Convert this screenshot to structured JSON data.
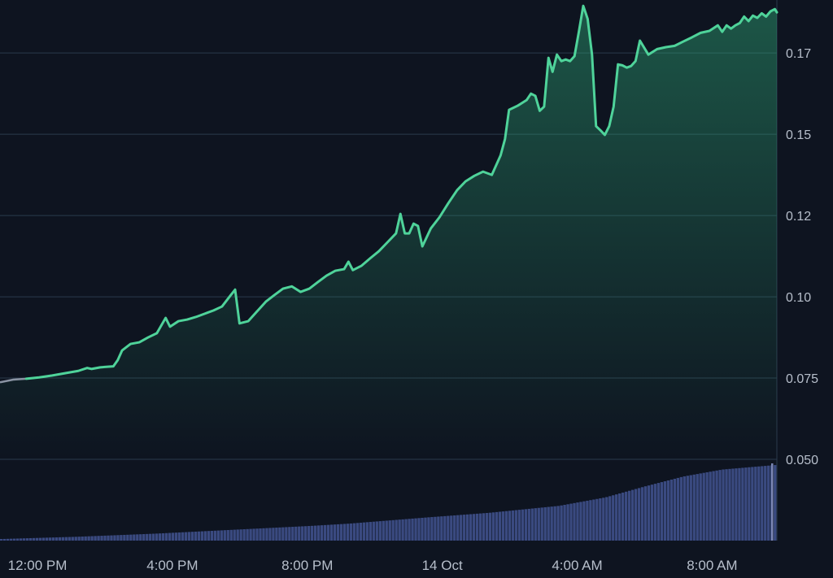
{
  "chart_data": {
    "type": "area",
    "title": "",
    "xlabel": "",
    "ylabel": "",
    "x_unit": "hours",
    "xlim": [
      10.89,
      33.92
    ],
    "ylim": [
      0.05,
      0.1913
    ],
    "y_ticks": [
      {
        "value": 0.05,
        "label": "0.050"
      },
      {
        "value": 0.075,
        "label": "0.075"
      },
      {
        "value": 0.1,
        "label": "0.10"
      },
      {
        "value": 0.125,
        "label": "0.12"
      },
      {
        "value": 0.15,
        "label": "0.15"
      },
      {
        "value": 0.175,
        "label": "0.17"
      }
    ],
    "x_ticks": [
      {
        "value": 12,
        "label": "12:00 PM"
      },
      {
        "value": 16,
        "label": "4:00 PM"
      },
      {
        "value": 20,
        "label": "8:00 PM"
      },
      {
        "value": 24,
        "label": "14 Oct"
      },
      {
        "value": 28,
        "label": "4:00 AM"
      },
      {
        "value": 32,
        "label": "8:00 AM"
      }
    ],
    "grid": true,
    "colors": {
      "background": "#0e1420",
      "line": "#4fd39a",
      "area_top": "#2ea877",
      "grid": "#2a3a4c",
      "axis_text": "#b7bfcb",
      "volume": "#3a4a80",
      "volume_last": "#7b86b4"
    },
    "series": [
      {
        "values": [
          [
            10.89,
            0.0737
          ],
          [
            11.28,
            0.0745
          ],
          [
            11.67,
            0.0748
          ],
          [
            12.05,
            0.0752
          ],
          [
            12.44,
            0.0758
          ],
          [
            12.83,
            0.0765
          ],
          [
            13.21,
            0.0772
          ],
          [
            13.47,
            0.0781
          ],
          [
            13.6,
            0.0778
          ],
          [
            13.86,
            0.0783
          ],
          [
            14.25,
            0.0786
          ],
          [
            14.38,
            0.0805
          ],
          [
            14.51,
            0.0835
          ],
          [
            14.76,
            0.0855
          ],
          [
            15.02,
            0.086
          ],
          [
            15.28,
            0.0875
          ],
          [
            15.54,
            0.0888
          ],
          [
            15.8,
            0.0935
          ],
          [
            15.93,
            0.0908
          ],
          [
            16.18,
            0.0925
          ],
          [
            16.44,
            0.093
          ],
          [
            16.7,
            0.0938
          ],
          [
            16.96,
            0.0948
          ],
          [
            17.22,
            0.0958
          ],
          [
            17.47,
            0.097
          ],
          [
            17.73,
            0.1005
          ],
          [
            17.86,
            0.1022
          ],
          [
            17.99,
            0.0918
          ],
          [
            18.25,
            0.0925
          ],
          [
            18.51,
            0.0955
          ],
          [
            18.77,
            0.0985
          ],
          [
            19.02,
            0.1005
          ],
          [
            19.28,
            0.1025
          ],
          [
            19.54,
            0.1032
          ],
          [
            19.8,
            0.1015
          ],
          [
            20.06,
            0.1025
          ],
          [
            20.31,
            0.1045
          ],
          [
            20.57,
            0.1065
          ],
          [
            20.83,
            0.108
          ],
          [
            21.09,
            0.1085
          ],
          [
            21.22,
            0.1108
          ],
          [
            21.35,
            0.1082
          ],
          [
            21.6,
            0.1095
          ],
          [
            21.86,
            0.1118
          ],
          [
            22.12,
            0.114
          ],
          [
            22.38,
            0.1168
          ],
          [
            22.63,
            0.1195
          ],
          [
            22.76,
            0.1255
          ],
          [
            22.89,
            0.1195
          ],
          [
            23.02,
            0.1195
          ],
          [
            23.15,
            0.1225
          ],
          [
            23.28,
            0.1218
          ],
          [
            23.41,
            0.1155
          ],
          [
            23.66,
            0.121
          ],
          [
            23.92,
            0.1245
          ],
          [
            24.18,
            0.1288
          ],
          [
            24.44,
            0.1328
          ],
          [
            24.69,
            0.1355
          ],
          [
            24.95,
            0.1372
          ],
          [
            25.21,
            0.1385
          ],
          [
            25.47,
            0.1375
          ],
          [
            25.73,
            0.1435
          ],
          [
            25.86,
            0.1485
          ],
          [
            25.98,
            0.1575
          ],
          [
            26.24,
            0.1588
          ],
          [
            26.5,
            0.1605
          ],
          [
            26.63,
            0.1625
          ],
          [
            26.76,
            0.1618
          ],
          [
            26.89,
            0.1572
          ],
          [
            27.02,
            0.1585
          ],
          [
            27.15,
            0.1735
          ],
          [
            27.27,
            0.1692
          ],
          [
            27.4,
            0.1745
          ],
          [
            27.53,
            0.1725
          ],
          [
            27.66,
            0.173
          ],
          [
            27.79,
            0.1725
          ],
          [
            27.92,
            0.174
          ],
          [
            28.05,
            0.1815
          ],
          [
            28.18,
            0.1895
          ],
          [
            28.31,
            0.1855
          ],
          [
            28.44,
            0.1745
          ],
          [
            28.56,
            0.1525
          ],
          [
            28.69,
            0.1512
          ],
          [
            28.82,
            0.1498
          ],
          [
            28.95,
            0.1525
          ],
          [
            29.08,
            0.1585
          ],
          [
            29.21,
            0.1715
          ],
          [
            29.34,
            0.1712
          ],
          [
            29.47,
            0.1705
          ],
          [
            29.6,
            0.171
          ],
          [
            29.73,
            0.1725
          ],
          [
            29.86,
            0.1788
          ],
          [
            30.11,
            0.1745
          ],
          [
            30.37,
            0.1762
          ],
          [
            30.63,
            0.1768
          ],
          [
            30.89,
            0.1772
          ],
          [
            31.14,
            0.1785
          ],
          [
            31.4,
            0.1798
          ],
          [
            31.66,
            0.1812
          ],
          [
            31.92,
            0.1818
          ],
          [
            32.17,
            0.1835
          ],
          [
            32.3,
            0.1815
          ],
          [
            32.43,
            0.1835
          ],
          [
            32.56,
            0.1825
          ],
          [
            32.69,
            0.1835
          ],
          [
            32.82,
            0.1842
          ],
          [
            32.95,
            0.1862
          ],
          [
            33.08,
            0.1848
          ],
          [
            33.21,
            0.1865
          ],
          [
            33.34,
            0.1858
          ],
          [
            33.47,
            0.1872
          ],
          [
            33.6,
            0.1862
          ],
          [
            33.73,
            0.1878
          ],
          [
            33.86,
            0.1885
          ],
          [
            33.92,
            0.1875
          ]
        ]
      }
    ],
    "volume": {
      "start": 10.89,
      "end": 33.92,
      "values": [
        [
          0,
          0.02
        ],
        [
          0.1,
          0.05
        ],
        [
          0.2,
          0.09
        ],
        [
          0.3,
          0.14
        ],
        [
          0.4,
          0.19
        ],
        [
          0.45,
          0.22
        ],
        [
          0.55,
          0.3
        ],
        [
          0.63,
          0.36
        ],
        [
          0.72,
          0.45
        ],
        [
          0.78,
          0.56
        ],
        [
          0.83,
          0.7
        ],
        [
          0.88,
          0.83
        ],
        [
          0.93,
          0.92
        ],
        [
          1.0,
          0.98
        ]
      ]
    }
  }
}
